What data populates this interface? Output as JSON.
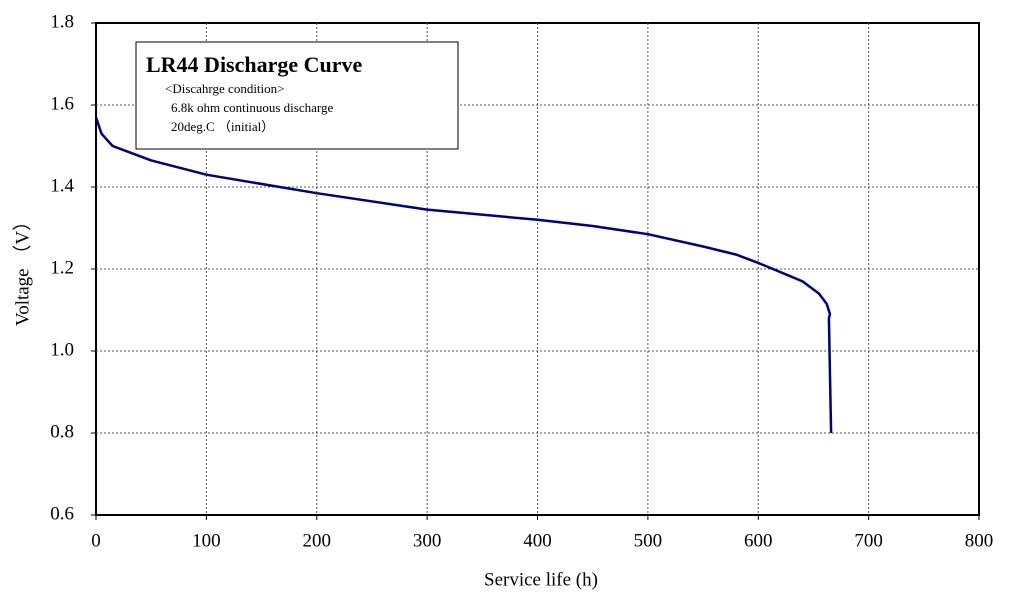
{
  "chart_data": {
    "type": "line",
    "title": "LR44 Discharge Curve",
    "annotations": [
      "<Discahrge condition>",
      "6.8k ohm continuous discharge",
      "20deg.C （initial）"
    ],
    "x_label": "Service life (h)",
    "y_label": "Voltage （V）",
    "series": [
      {
        "color": "#000080",
        "x": [
          0,
          5,
          15,
          50,
          100,
          200,
          300,
          400,
          450,
          500,
          550,
          580,
          600,
          640,
          655,
          662,
          665,
          664,
          666
        ],
        "values": [
          1.57,
          1.53,
          1.5,
          1.465,
          1.43,
          1.385,
          1.345,
          1.32,
          1.305,
          1.285,
          1.255,
          1.235,
          1.215,
          1.17,
          1.14,
          1.115,
          1.09,
          1.08,
          0.8
        ]
      }
    ],
    "xlim": [
      0,
      800
    ],
    "xticks": [
      0,
      100,
      200,
      300,
      400,
      500,
      600,
      700,
      800
    ],
    "ylim": [
      0.6,
      1.8
    ],
    "yticks": [
      {
        "value": 0.6,
        "label": "0.6"
      },
      {
        "value": 0.8,
        "label": "0.8"
      },
      {
        "value": 1.0,
        "label": "1.0"
      },
      {
        "value": 1.2,
        "label": "1.2"
      },
      {
        "value": 1.4,
        "label": "1.4"
      },
      {
        "value": 1.6,
        "label": "1.6"
      },
      {
        "value": 1.8,
        "label": "1.8"
      }
    ],
    "grid": true
  }
}
